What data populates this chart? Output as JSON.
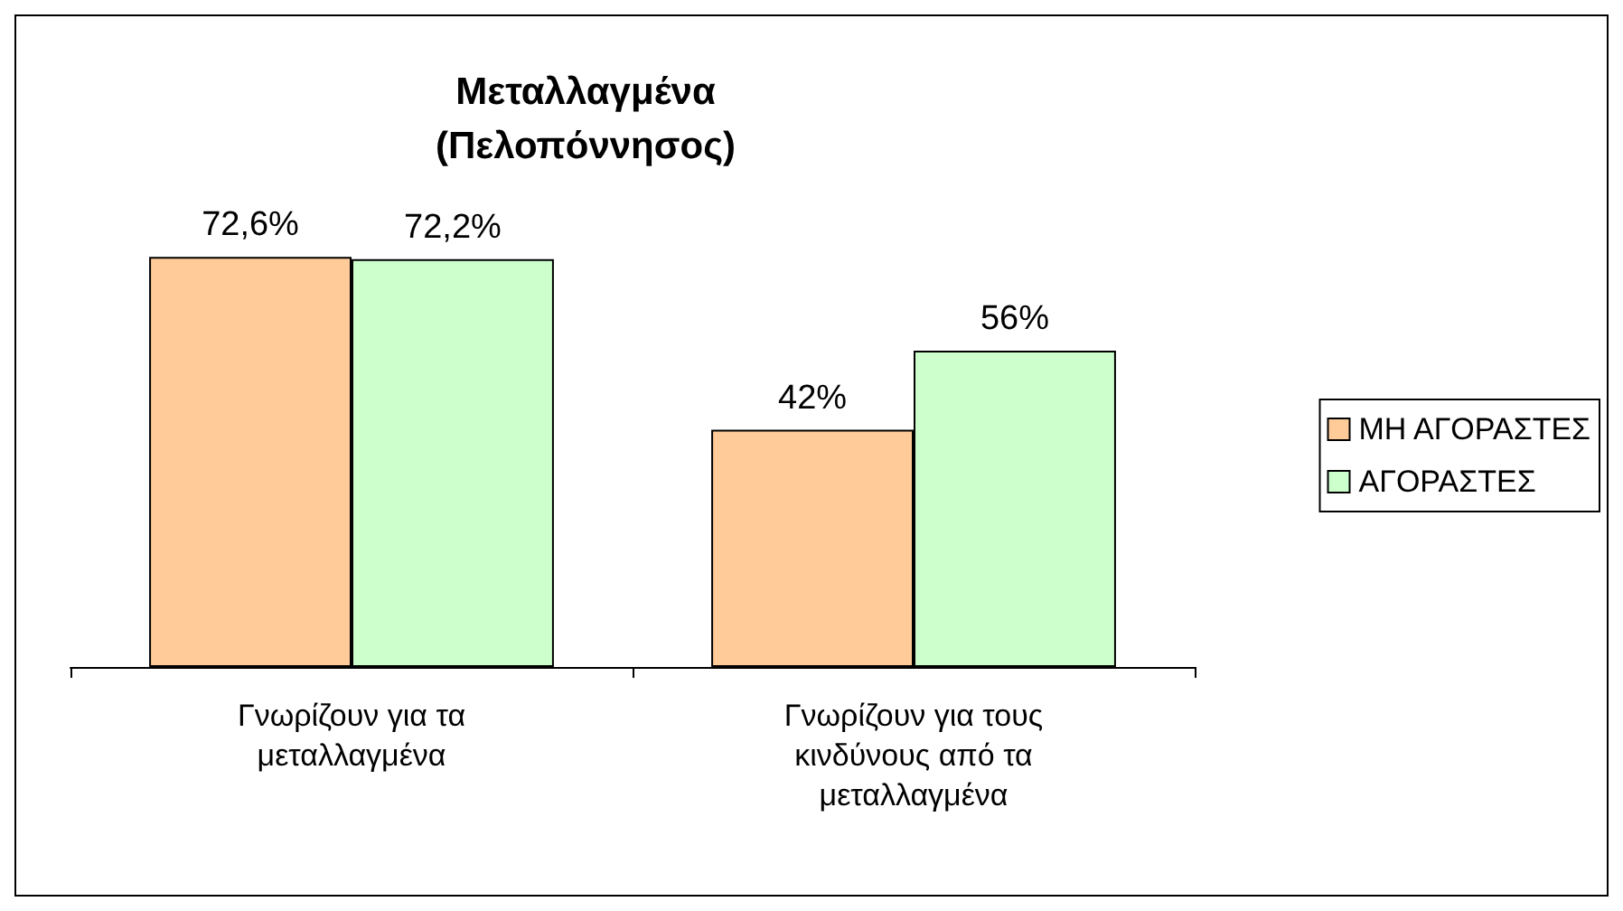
{
  "chart_data": {
    "type": "bar",
    "title": "Μεταλλαγμένα\n(Πελοπόννησος)",
    "categories": [
      "Γνωρίζουν για τα\nμεταλλαγμένα",
      "Γνωρίζουν για τους\nκινδύνους από τα\nμεταλλαγμένα"
    ],
    "series": [
      {
        "name": "ΜΗ ΑΓΟΡΑΣΤΕΣ",
        "color": "#ffcc99",
        "values": [
          72.6,
          42
        ],
        "value_labels": [
          "72,6%",
          "42%"
        ]
      },
      {
        "name": "ΑΓΟΡΑΣΤΕΣ",
        "color": "#ccffcc",
        "values": [
          72.2,
          56
        ],
        "value_labels": [
          "72,2%",
          "56%"
        ]
      }
    ],
    "legend": "right"
  }
}
